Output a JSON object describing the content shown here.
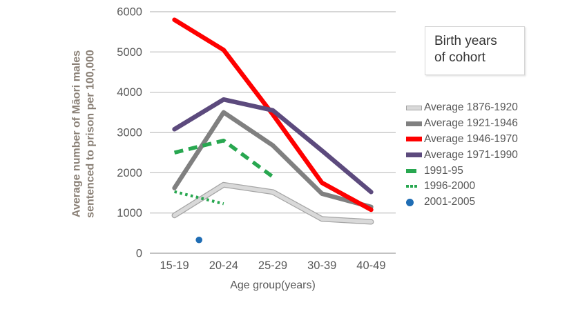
{
  "chart_data": {
    "type": "line",
    "title": "",
    "xlabel": "Age group(years)",
    "ylabel": "Average number of Māori males sentenced to prison per 100,000",
    "ylabel_line1": "Average number of Māori males",
    "ylabel_line2": "sentenced to prison per 100,000",
    "legend_title": "Birth years of cohort",
    "legend_title_line1": "Birth years",
    "legend_title_line2": "of cohort",
    "legend_position": "right",
    "grid": true,
    "categories": [
      "15-19",
      "20-24",
      "25-29",
      "30-39",
      "40-49"
    ],
    "y_ticks": [
      0,
      1000,
      2000,
      3000,
      4000,
      5000,
      6000
    ],
    "ylim": [
      0,
      6000
    ],
    "colors": {
      "gridline": "#c9c9c9",
      "zero_line": "#adadad",
      "tick_label": "#595959",
      "axis_title": "#595959",
      "y_axis_title": "#8a8076"
    },
    "series": [
      {
        "name": "Average 1876-1920",
        "color": "#d9d9d9",
        "outline_color": "#a6a6a6",
        "style": "solid-outlined",
        "values": [
          940,
          1700,
          1520,
          850,
          780
        ]
      },
      {
        "name": "Average 1921-1946",
        "color": "#808080",
        "style": "solid",
        "values": [
          1620,
          3500,
          2680,
          1480,
          1150
        ]
      },
      {
        "name": "Average 1946-1970",
        "color": "#fe0000",
        "style": "solid",
        "values": [
          5800,
          5050,
          3450,
          1750,
          1080
        ]
      },
      {
        "name": "Average 1971-1990",
        "color": "#5c4a7d",
        "style": "solid",
        "values": [
          3080,
          3820,
          3550,
          2550,
          1520
        ]
      },
      {
        "name": "1991-95",
        "color": "#28a750",
        "style": "dashed",
        "values": [
          2500,
          2800,
          1900,
          null,
          null
        ]
      },
      {
        "name": "1996-2000",
        "color": "#28a750",
        "style": "dotted",
        "values": [
          1530,
          1230,
          null,
          null,
          null
        ]
      },
      {
        "name": "2001-2005",
        "color": "#1f6db4",
        "style": "point",
        "values": [
          null,
          null,
          null,
          null,
          null
        ],
        "points": [
          {
            "x_index": 0.5,
            "value": 330
          }
        ]
      }
    ]
  }
}
